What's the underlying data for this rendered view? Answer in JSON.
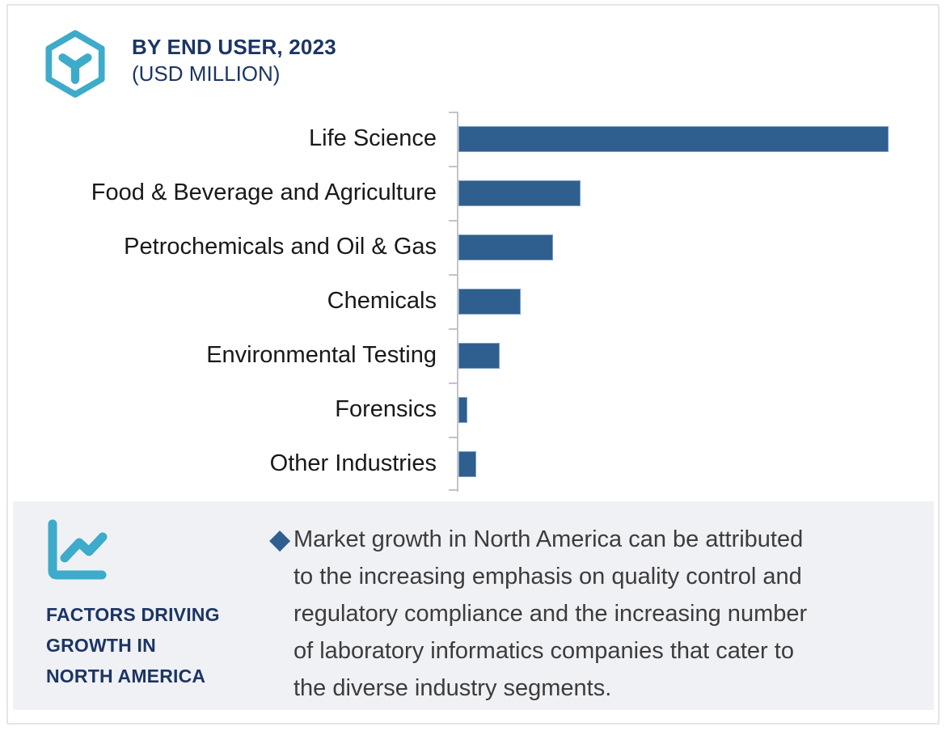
{
  "header": {
    "logo": "hexagon-y-logo",
    "title_line1": "BY END USER, 2023",
    "title_line2": "(USD MILLION)",
    "navy_color": "#1c3564",
    "teal_color": "#3dabc9"
  },
  "chart_data": {
    "type": "bar",
    "orientation": "horizontal",
    "title": "BY END USER, 2023 (USD MILLION)",
    "categories": [
      "Life Science",
      "Food & Beverage and Agriculture",
      "Petrochemicals and Oil & Gas",
      "Chemicals",
      "Environmental Testing",
      "Forensics",
      "Other Industries"
    ],
    "values": [
      100,
      28.4,
      22.0,
      14.5,
      9.6,
      2.1,
      4.1
    ],
    "value_note": "relative bar lengths as % of largest bar; numeric axis not labeled in image",
    "xlabel": "",
    "ylabel": "",
    "xlim": [
      0,
      111
    ],
    "gridlines": false,
    "legend": false,
    "bar_color": "#2e5f8e",
    "bar_border_color": "#7d9fc2",
    "axis_color": "#c3c4c8"
  },
  "panel": {
    "icon": "line-chart-icon",
    "heading": "FACTORS DRIVING\nGROWTH IN\nNORTH AMERICA",
    "bullet_marker": "◆",
    "bullet_text": "Market growth in North America can be attributed\nto the increasing emphasis on quality control and\nregulatory compliance and the increasing number\nof laboratory informatics companies that cater to\nthe diverse industry segments.",
    "bg_color": "#f0f1f5"
  }
}
